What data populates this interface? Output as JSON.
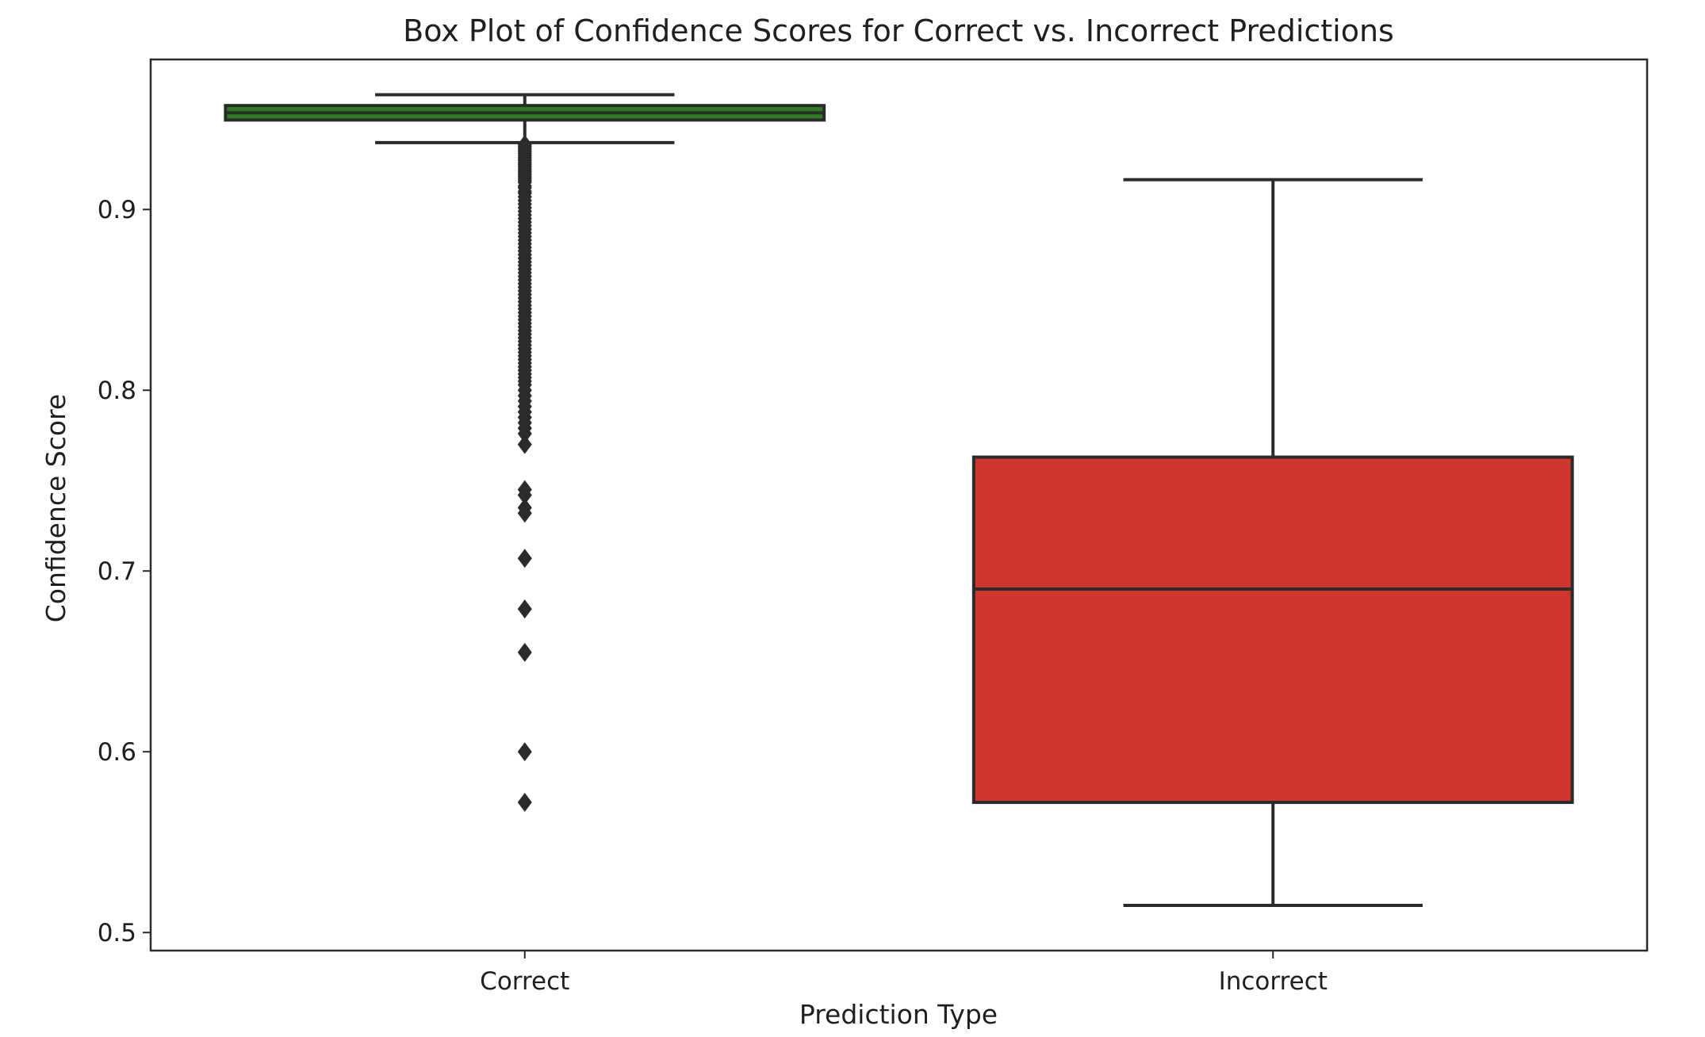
{
  "chart_data": {
    "type": "box",
    "title": "Box Plot of Confidence Scores for Correct vs. Incorrect Predictions",
    "xlabel": "Prediction Type",
    "ylabel": "Confidence Score",
    "ylim": [
      0.49,
      0.983
    ],
    "yticks": [
      0.5,
      0.6,
      0.7,
      0.8,
      0.9
    ],
    "ytick_labels": [
      "0.5",
      "0.6",
      "0.7",
      "0.8",
      "0.9"
    ],
    "categories": [
      "Correct",
      "Incorrect"
    ],
    "grid": false,
    "legend": "none",
    "boxes": [
      {
        "category": "Correct",
        "color": "#2e7d23",
        "whisker_low": 0.937,
        "q1": 0.9495,
        "median": 0.9535,
        "q3": 0.9575,
        "whisker_high": 0.9635,
        "outliers": [
          0.936,
          0.935,
          0.934,
          0.933,
          0.932,
          0.931,
          0.93,
          0.929,
          0.928,
          0.927,
          0.926,
          0.925,
          0.924,
          0.923,
          0.922,
          0.921,
          0.92,
          0.919,
          0.918,
          0.917,
          0.916,
          0.915,
          0.913,
          0.912,
          0.91,
          0.909,
          0.907,
          0.905,
          0.903,
          0.901,
          0.899,
          0.897,
          0.895,
          0.893,
          0.891,
          0.889,
          0.887,
          0.885,
          0.883,
          0.881,
          0.879,
          0.877,
          0.875,
          0.873,
          0.871,
          0.869,
          0.867,
          0.865,
          0.863,
          0.861,
          0.859,
          0.857,
          0.855,
          0.853,
          0.851,
          0.849,
          0.847,
          0.845,
          0.843,
          0.841,
          0.839,
          0.837,
          0.835,
          0.833,
          0.831,
          0.829,
          0.827,
          0.825,
          0.823,
          0.821,
          0.819,
          0.817,
          0.815,
          0.813,
          0.811,
          0.809,
          0.807,
          0.805,
          0.803,
          0.8,
          0.797,
          0.794,
          0.791,
          0.788,
          0.785,
          0.782,
          0.779,
          0.776,
          0.77,
          0.745,
          0.742,
          0.735,
          0.732,
          0.707,
          0.679,
          0.655,
          0.6,
          0.572
        ]
      },
      {
        "category": "Incorrect",
        "color": "#cf362e",
        "whisker_low": 0.515,
        "q1": 0.572,
        "median": 0.69,
        "q3": 0.763,
        "whisker_high": 0.9165,
        "outliers": []
      }
    ]
  }
}
